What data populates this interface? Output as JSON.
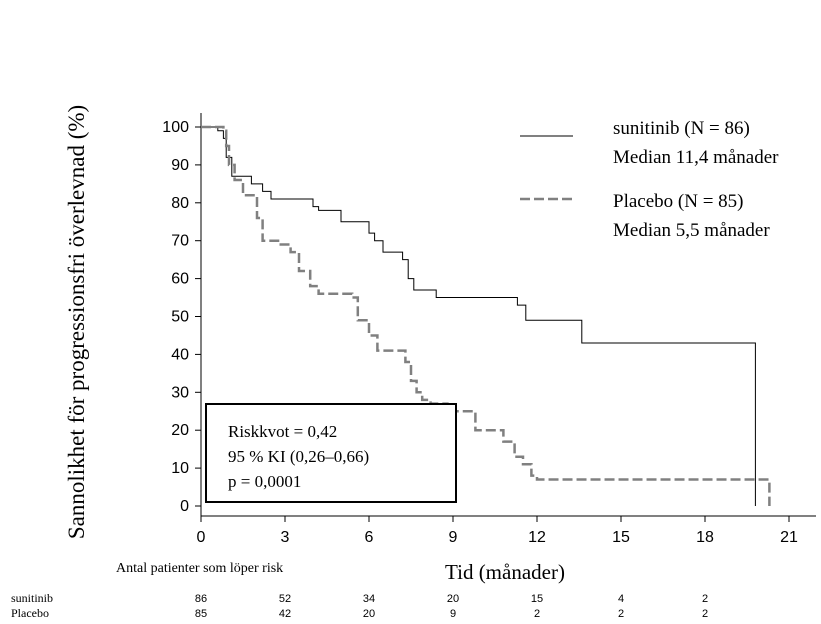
{
  "chart_data": {
    "type": "line",
    "ylabel": "Sannolikhet för progressionsfri överlevnad (%)",
    "xlabel": "Tid (månader)",
    "xlim": [
      0,
      22
    ],
    "ylim": [
      0,
      105
    ],
    "xticks": [
      "0",
      "3",
      "6",
      "9",
      "12",
      "15",
      "18",
      "21"
    ],
    "yticks": [
      "0",
      "10",
      "20",
      "30",
      "40",
      "50",
      "60",
      "70",
      "80",
      "90",
      "100"
    ],
    "grid": false,
    "legend_position": "top-right",
    "series": [
      {
        "name": "sunitinib (N = 86)",
        "median_label": "Median 11,4 månader",
        "color": "#000000",
        "style": "solid",
        "steps": [
          [
            0,
            100
          ],
          [
            0.6,
            99
          ],
          [
            0.8,
            97
          ],
          [
            0.9,
            92
          ],
          [
            1.1,
            87
          ],
          [
            1.8,
            85
          ],
          [
            2.2,
            83
          ],
          [
            2.5,
            81
          ],
          [
            4.0,
            79
          ],
          [
            4.2,
            78
          ],
          [
            5.0,
            75
          ],
          [
            5.2,
            75
          ],
          [
            6.0,
            72
          ],
          [
            6.2,
            70
          ],
          [
            6.5,
            67
          ],
          [
            7.2,
            65
          ],
          [
            7.4,
            60
          ],
          [
            7.6,
            57
          ],
          [
            8.4,
            55
          ],
          [
            11.3,
            53
          ],
          [
            11.6,
            49
          ],
          [
            13.6,
            43
          ],
          [
            19.8,
            0
          ]
        ]
      },
      {
        "name": "Placebo (N = 85)",
        "median_label": "Median 5,5 månader",
        "color": "#808080",
        "style": "dashed",
        "steps": [
          [
            0,
            100
          ],
          [
            0.8,
            99
          ],
          [
            0.9,
            95
          ],
          [
            1.0,
            90
          ],
          [
            1.2,
            86
          ],
          [
            1.5,
            82
          ],
          [
            2.0,
            76
          ],
          [
            2.2,
            70
          ],
          [
            2.8,
            69
          ],
          [
            3.2,
            67
          ],
          [
            3.5,
            62
          ],
          [
            3.9,
            58
          ],
          [
            4.2,
            56
          ],
          [
            5.4,
            55
          ],
          [
            5.6,
            49
          ],
          [
            6.0,
            45
          ],
          [
            6.3,
            41
          ],
          [
            7.3,
            38
          ],
          [
            7.5,
            33
          ],
          [
            7.7,
            30
          ],
          [
            7.9,
            28
          ],
          [
            8.2,
            27
          ],
          [
            8.8,
            26
          ],
          [
            9.0,
            25
          ],
          [
            9.8,
            20
          ],
          [
            10.8,
            17
          ],
          [
            11.2,
            13
          ],
          [
            11.5,
            11
          ],
          [
            11.8,
            8
          ],
          [
            12.0,
            7
          ],
          [
            20.3,
            0
          ]
        ]
      }
    ],
    "annotation": {
      "lines": [
        "Riskkvot = 0,42",
        "95 % KI (0,26–0,66)",
        "p = 0,0001"
      ]
    },
    "risk_table": {
      "title": "Antal patienter som löper risk",
      "times": [
        0,
        3,
        6,
        9,
        12,
        15,
        18
      ],
      "rows": [
        {
          "label": "sunitinib",
          "values": [
            "86",
            "52",
            "34",
            "20",
            "15",
            "4",
            "2"
          ]
        },
        {
          "label": "Placebo",
          "values": [
            "85",
            "42",
            "20",
            "9",
            "2",
            "2",
            "2"
          ]
        }
      ]
    }
  }
}
